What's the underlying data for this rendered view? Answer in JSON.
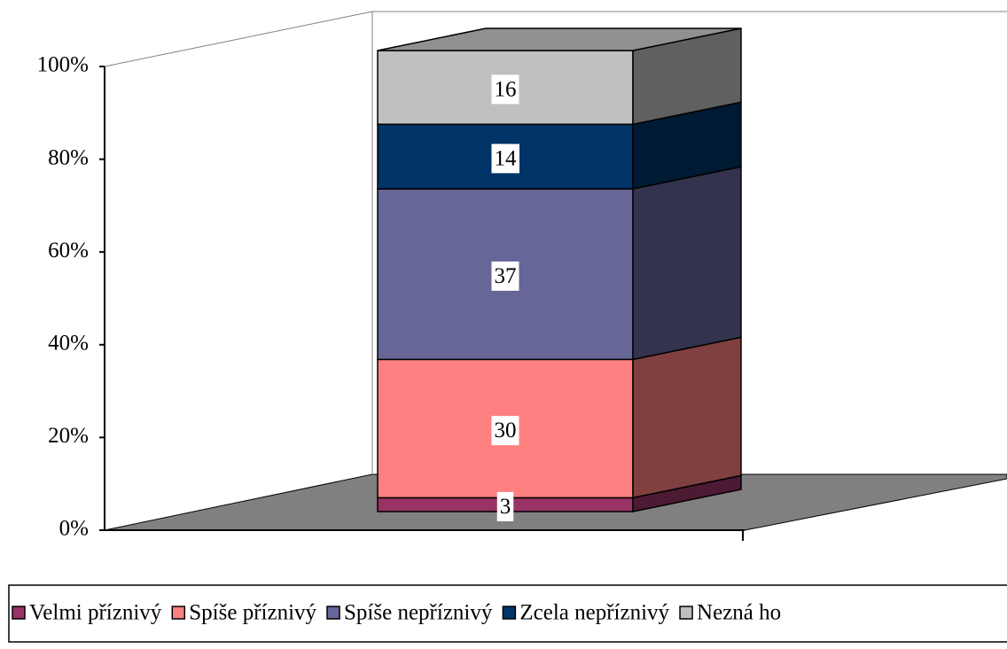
{
  "chart_data": {
    "type": "bar3d-stacked",
    "categories": [
      null
    ],
    "series": [
      {
        "name": "Velmi příznivý",
        "color": "#993366",
        "values": [
          3
        ]
      },
      {
        "name": "Spíše příznivý",
        "color": "#FF8080",
        "values": [
          30
        ]
      },
      {
        "name": "Spíše nepříznivý",
        "color": "#666699",
        "values": [
          37
        ]
      },
      {
        "name": "Zcela nepříznivý",
        "color": "#003366",
        "values": [
          14
        ]
      },
      {
        "name": "Nezná ho",
        "color": "#C0C0C0",
        "values": [
          16
        ]
      }
    ],
    "ylim": [
      0,
      100
    ],
    "yticks": [
      {
        "value": 0,
        "label": "0%"
      },
      {
        "value": 20,
        "label": "20%"
      },
      {
        "value": 40,
        "label": "40%"
      },
      {
        "value": 60,
        "label": "60%"
      },
      {
        "value": 80,
        "label": "80%"
      },
      {
        "value": 100,
        "label": "100%"
      }
    ],
    "legend": "bottom"
  }
}
